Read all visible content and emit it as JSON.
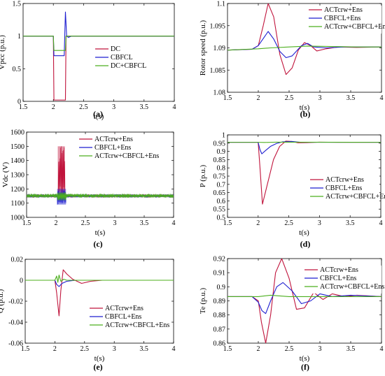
{
  "chart_data": [
    {
      "id": "a",
      "type": "line",
      "panel_label": "(a)",
      "xlabel": "t(s)",
      "ylabel": "Vpcc (p.u.)",
      "xlim": [
        1.5,
        4
      ],
      "ylim": [
        0,
        1.5
      ],
      "xticks": [
        1.5,
        2,
        2.5,
        3,
        3.5,
        4
      ],
      "xtick_labels": [
        "1.5",
        "2",
        "2.5",
        "3",
        "3.5",
        "4"
      ],
      "yticks": [
        0,
        0.5,
        1,
        1.5
      ],
      "ytick_labels": [
        "0",
        "0.5",
        "1",
        "1.5"
      ],
      "legend_position": "center-right",
      "grid": false,
      "series": [
        {
          "name": "DC",
          "color": "#c0143c",
          "x": [
            1.5,
            2.0,
            2.01,
            2.2,
            2.21,
            4.0
          ],
          "y": [
            1.0,
            1.0,
            0.02,
            0.02,
            1.0,
            1.0
          ]
        },
        {
          "name": "CBFCL",
          "color": "#1f1fd0",
          "x": [
            1.5,
            2.0,
            2.01,
            2.05,
            2.18,
            2.19,
            2.2,
            2.22,
            2.25,
            2.3,
            4.0
          ],
          "y": [
            1.0,
            1.0,
            0.7,
            0.7,
            0.7,
            1.05,
            1.37,
            1.0,
            0.98,
            1.0,
            1.0
          ]
        },
        {
          "name": "DC+CBFCL",
          "color": "#4caf1e",
          "x": [
            1.5,
            2.0,
            2.01,
            2.2,
            2.21,
            4.0
          ],
          "y": [
            1.0,
            1.0,
            0.78,
            0.78,
            1.0,
            1.0
          ]
        }
      ]
    },
    {
      "id": "b",
      "type": "line",
      "panel_label": "(b)",
      "xlabel": "t(s)",
      "ylabel": "Rotor speed (p.u.)",
      "xlim": [
        1.5,
        4
      ],
      "ylim": [
        1.08,
        1.1
      ],
      "xticks": [
        1.5,
        2,
        2.5,
        3,
        3.5,
        4
      ],
      "xtick_labels": [
        "1.5",
        "2",
        "2.5",
        "3",
        "3.5",
        "4"
      ],
      "yticks": [
        1.08,
        1.085,
        1.09,
        1.095,
        1.1
      ],
      "ytick_labels": [
        "1.08",
        "1.085",
        "1.09",
        "1.095",
        "1.1"
      ],
      "legend_position": "top-right",
      "grid": false,
      "series": [
        {
          "name": "ACTcrw+Ens",
          "color": "#c0143c",
          "x": [
            1.5,
            1.9,
            2.0,
            2.08,
            2.16,
            2.25,
            2.35,
            2.45,
            2.55,
            2.65,
            2.75,
            2.85,
            2.95,
            3.1,
            3.3,
            3.6,
            4.0
          ],
          "y": [
            1.0895,
            1.0897,
            1.0905,
            1.095,
            1.1,
            1.097,
            1.0885,
            1.084,
            1.0855,
            1.0895,
            1.0912,
            1.0905,
            1.0893,
            1.0898,
            1.0902,
            1.0901,
            1.0902
          ]
        },
        {
          "name": "CBFCL+Ens",
          "color": "#1f1fd0",
          "x": [
            1.5,
            1.9,
            2.0,
            2.1,
            2.16,
            2.25,
            2.35,
            2.45,
            2.55,
            2.7,
            2.8,
            2.9,
            3.1,
            3.4,
            4.0
          ],
          "y": [
            1.0895,
            1.0897,
            1.0905,
            1.0925,
            1.0937,
            1.092,
            1.0892,
            1.0878,
            1.0882,
            1.0905,
            1.091,
            1.0902,
            1.09,
            1.0902,
            1.0902
          ]
        },
        {
          "name": "ACTcrw+CBFCL+Ens",
          "color": "#4caf1e",
          "x": [
            1.5,
            2.0,
            2.2,
            2.5,
            2.8,
            3.2,
            3.6,
            4.0
          ],
          "y": [
            1.0895,
            1.0898,
            1.09,
            1.0902,
            1.0904,
            1.0903,
            1.0902,
            1.0902
          ]
        }
      ]
    },
    {
      "id": "c",
      "type": "line",
      "panel_label": "(c)",
      "xlabel": "t(s)",
      "ylabel": "Vdc (V)",
      "xlim": [
        1.5,
        4
      ],
      "ylim": [
        1000,
        1600
      ],
      "xticks": [
        1.5,
        2,
        2.5,
        3,
        3.5,
        4
      ],
      "xtick_labels": [
        "1.5",
        "2",
        "2.5",
        "3",
        "3.5",
        "4"
      ],
      "yticks": [
        1000,
        1100,
        1200,
        1300,
        1400,
        1500,
        1600
      ],
      "ytick_labels": [
        "1000",
        "1100",
        "1200",
        "1300",
        "1400",
        "1500",
        "1600"
      ],
      "legend_position": "top-right",
      "grid": false,
      "series": [
        {
          "name": "ACTcrw+Ens",
          "color": "#c0143c",
          "x": [
            1.5,
            4.0
          ],
          "y": [
            1150,
            1150
          ],
          "band": [
            1140,
            1162
          ],
          "fault_x": [
            2.03,
            2.15
          ],
          "fault_band": [
            1130,
            1500
          ]
        },
        {
          "name": "CBFCL+Ens",
          "color": "#1f1fd0",
          "x": [
            1.5,
            4.0
          ],
          "y": [
            1150,
            1150
          ],
          "band": [
            1140,
            1162
          ],
          "fault_x": [
            2.02,
            2.17
          ],
          "fault_band": [
            1090,
            1200
          ]
        },
        {
          "name": "ACTcrw+CBFCL+Ens",
          "color": "#4caf1e",
          "x": [
            1.5,
            4.0
          ],
          "y": [
            1150,
            1150
          ],
          "band": [
            1138,
            1166
          ],
          "fault_x": [
            2.02,
            2.17
          ],
          "fault_band": [
            1120,
            1175
          ]
        }
      ]
    },
    {
      "id": "d",
      "type": "line",
      "panel_label": "(d)",
      "xlabel": "t(s)",
      "ylabel": "P (p.u.)",
      "xlim": [
        1.5,
        4
      ],
      "ylim": [
        0.5,
        1
      ],
      "xticks": [
        1.5,
        2,
        2.5,
        3,
        3.5,
        4
      ],
      "xtick_labels": [
        "1.5",
        "2",
        "2.5",
        "3",
        "3.5",
        "4"
      ],
      "yticks": [
        0.5,
        0.55,
        0.6,
        0.65,
        0.7,
        0.75,
        0.8,
        0.85,
        0.9,
        0.95,
        1
      ],
      "ytick_labels": [
        "0.5",
        "0.55",
        "0.6",
        "0.65",
        "0.7",
        "0.75",
        "0.8",
        "0.85",
        "0.9",
        "0.95",
        "1"
      ],
      "legend_position": "bottom-right",
      "grid": false,
      "series": [
        {
          "name": "ACTcrw+Ens",
          "color": "#c0143c",
          "x": [
            1.5,
            2.0,
            2.03,
            2.07,
            2.15,
            2.25,
            2.35,
            2.45,
            2.55,
            2.65,
            2.8,
            3.0,
            3.3,
            4.0
          ],
          "y": [
            0.955,
            0.955,
            0.8,
            0.58,
            0.7,
            0.85,
            0.93,
            0.962,
            0.96,
            0.952,
            0.953,
            0.956,
            0.955,
            0.955
          ]
        },
        {
          "name": "CBFCL+Ens",
          "color": "#1f1fd0",
          "x": [
            1.5,
            2.0,
            2.03,
            2.06,
            2.12,
            2.2,
            2.3,
            2.4,
            2.55,
            2.7,
            4.0
          ],
          "y": [
            0.955,
            0.955,
            0.91,
            0.885,
            0.905,
            0.93,
            0.948,
            0.958,
            0.96,
            0.955,
            0.955
          ]
        },
        {
          "name": "ACTcrw+CBFCL+Ens",
          "color": "#4caf1e",
          "x": [
            1.5,
            2.0,
            2.1,
            2.3,
            4.0
          ],
          "y": [
            0.955,
            0.955,
            0.954,
            0.956,
            0.955
          ]
        }
      ]
    },
    {
      "id": "e",
      "type": "line",
      "panel_label": "(e)",
      "xlabel": "t(s)",
      "ylabel": "Q (p.u.)",
      "xlim": [
        1.5,
        4
      ],
      "ylim": [
        -0.06,
        0.02
      ],
      "xticks": [
        1.5,
        2,
        2.5,
        3,
        3.5,
        4
      ],
      "xtick_labels": [
        "1.5",
        "2",
        "2.5",
        "3",
        "3.5",
        "4"
      ],
      "yticks": [
        -0.06,
        -0.04,
        -0.02,
        0,
        0.02
      ],
      "ytick_labels": [
        "-0.06",
        "-0.04",
        "-0.02",
        "0",
        "0.02"
      ],
      "legend_position": "center-right",
      "grid": false,
      "series": [
        {
          "name": "ACTcrw+Ens",
          "color": "#c0143c",
          "x": [
            1.5,
            2.0,
            2.03,
            2.07,
            2.1,
            2.14,
            2.2,
            2.3,
            2.45,
            2.6,
            2.8,
            3.0,
            4.0
          ],
          "y": [
            0.0,
            0.0,
            -0.012,
            -0.034,
            -0.01,
            0.01,
            0.006,
            0.001,
            -0.003,
            -0.001,
            0.0,
            0.0,
            0.0
          ]
        },
        {
          "name": "CBFCL+Ens",
          "color": "#1f1fd0",
          "x": [
            1.5,
            2.0,
            2.03,
            2.07,
            2.12,
            2.2,
            2.35,
            2.5,
            4.0
          ],
          "y": [
            0.0,
            0.0,
            -0.004,
            -0.006,
            -0.003,
            -0.001,
            0.0,
            0.0,
            0.0
          ]
        },
        {
          "name": "ACTcrw+CBFCL+Ens",
          "color": "#4caf1e",
          "x": [
            1.5,
            2.0,
            2.03,
            2.05,
            2.07,
            2.1,
            2.15,
            2.2,
            2.3,
            4.0
          ],
          "y": [
            0.0,
            0.0,
            0.004,
            -0.002,
            0.005,
            -0.001,
            0.001,
            0.0,
            0.0,
            0.0
          ]
        }
      ]
    },
    {
      "id": "f",
      "type": "line",
      "panel_label": "(f)",
      "xlabel": "t(s)",
      "ylabel": "Te (p.u.)",
      "xlim": [
        1.5,
        4
      ],
      "ylim": [
        0.86,
        0.92
      ],
      "xticks": [
        1.5,
        2,
        2.5,
        3,
        3.5,
        4
      ],
      "xtick_labels": [
        "1.5",
        "2",
        "2.5",
        "3",
        "3.5",
        "4"
      ],
      "yticks": [
        0.86,
        0.87,
        0.88,
        0.89,
        0.9,
        0.91,
        0.92
      ],
      "ytick_labels": [
        "0.86",
        "0.87",
        "0.88",
        "0.89",
        "0.9",
        "0.91",
        "0.92"
      ],
      "legend_position": "top-right",
      "grid": false,
      "series": [
        {
          "name": "ACTcrw+Ens",
          "color": "#c0143c",
          "x": [
            1.5,
            1.9,
            2.0,
            2.05,
            2.12,
            2.2,
            2.28,
            2.38,
            2.5,
            2.62,
            2.75,
            2.9,
            3.05,
            3.2,
            3.4,
            3.6,
            4.0
          ],
          "y": [
            0.893,
            0.893,
            0.89,
            0.875,
            0.86,
            0.88,
            0.91,
            0.92,
            0.906,
            0.884,
            0.885,
            0.896,
            0.891,
            0.895,
            0.893,
            0.894,
            0.893
          ]
        },
        {
          "name": "CBFCL+Ens",
          "color": "#1f1fd0",
          "x": [
            1.5,
            1.9,
            2.0,
            2.06,
            2.12,
            2.2,
            2.3,
            2.4,
            2.55,
            2.7,
            2.85,
            3.0,
            3.2,
            3.5,
            4.0
          ],
          "y": [
            0.893,
            0.893,
            0.889,
            0.883,
            0.881,
            0.89,
            0.9,
            0.903,
            0.897,
            0.888,
            0.89,
            0.895,
            0.893,
            0.894,
            0.893
          ]
        },
        {
          "name": "ACTcrw+CBFCL+Ens",
          "color": "#4caf1e",
          "x": [
            1.5,
            2.0,
            2.2,
            2.5,
            2.8,
            3.2,
            3.6,
            4.0
          ],
          "y": [
            0.893,
            0.893,
            0.894,
            0.893,
            0.893,
            0.893,
            0.893,
            0.893
          ]
        }
      ]
    }
  ]
}
